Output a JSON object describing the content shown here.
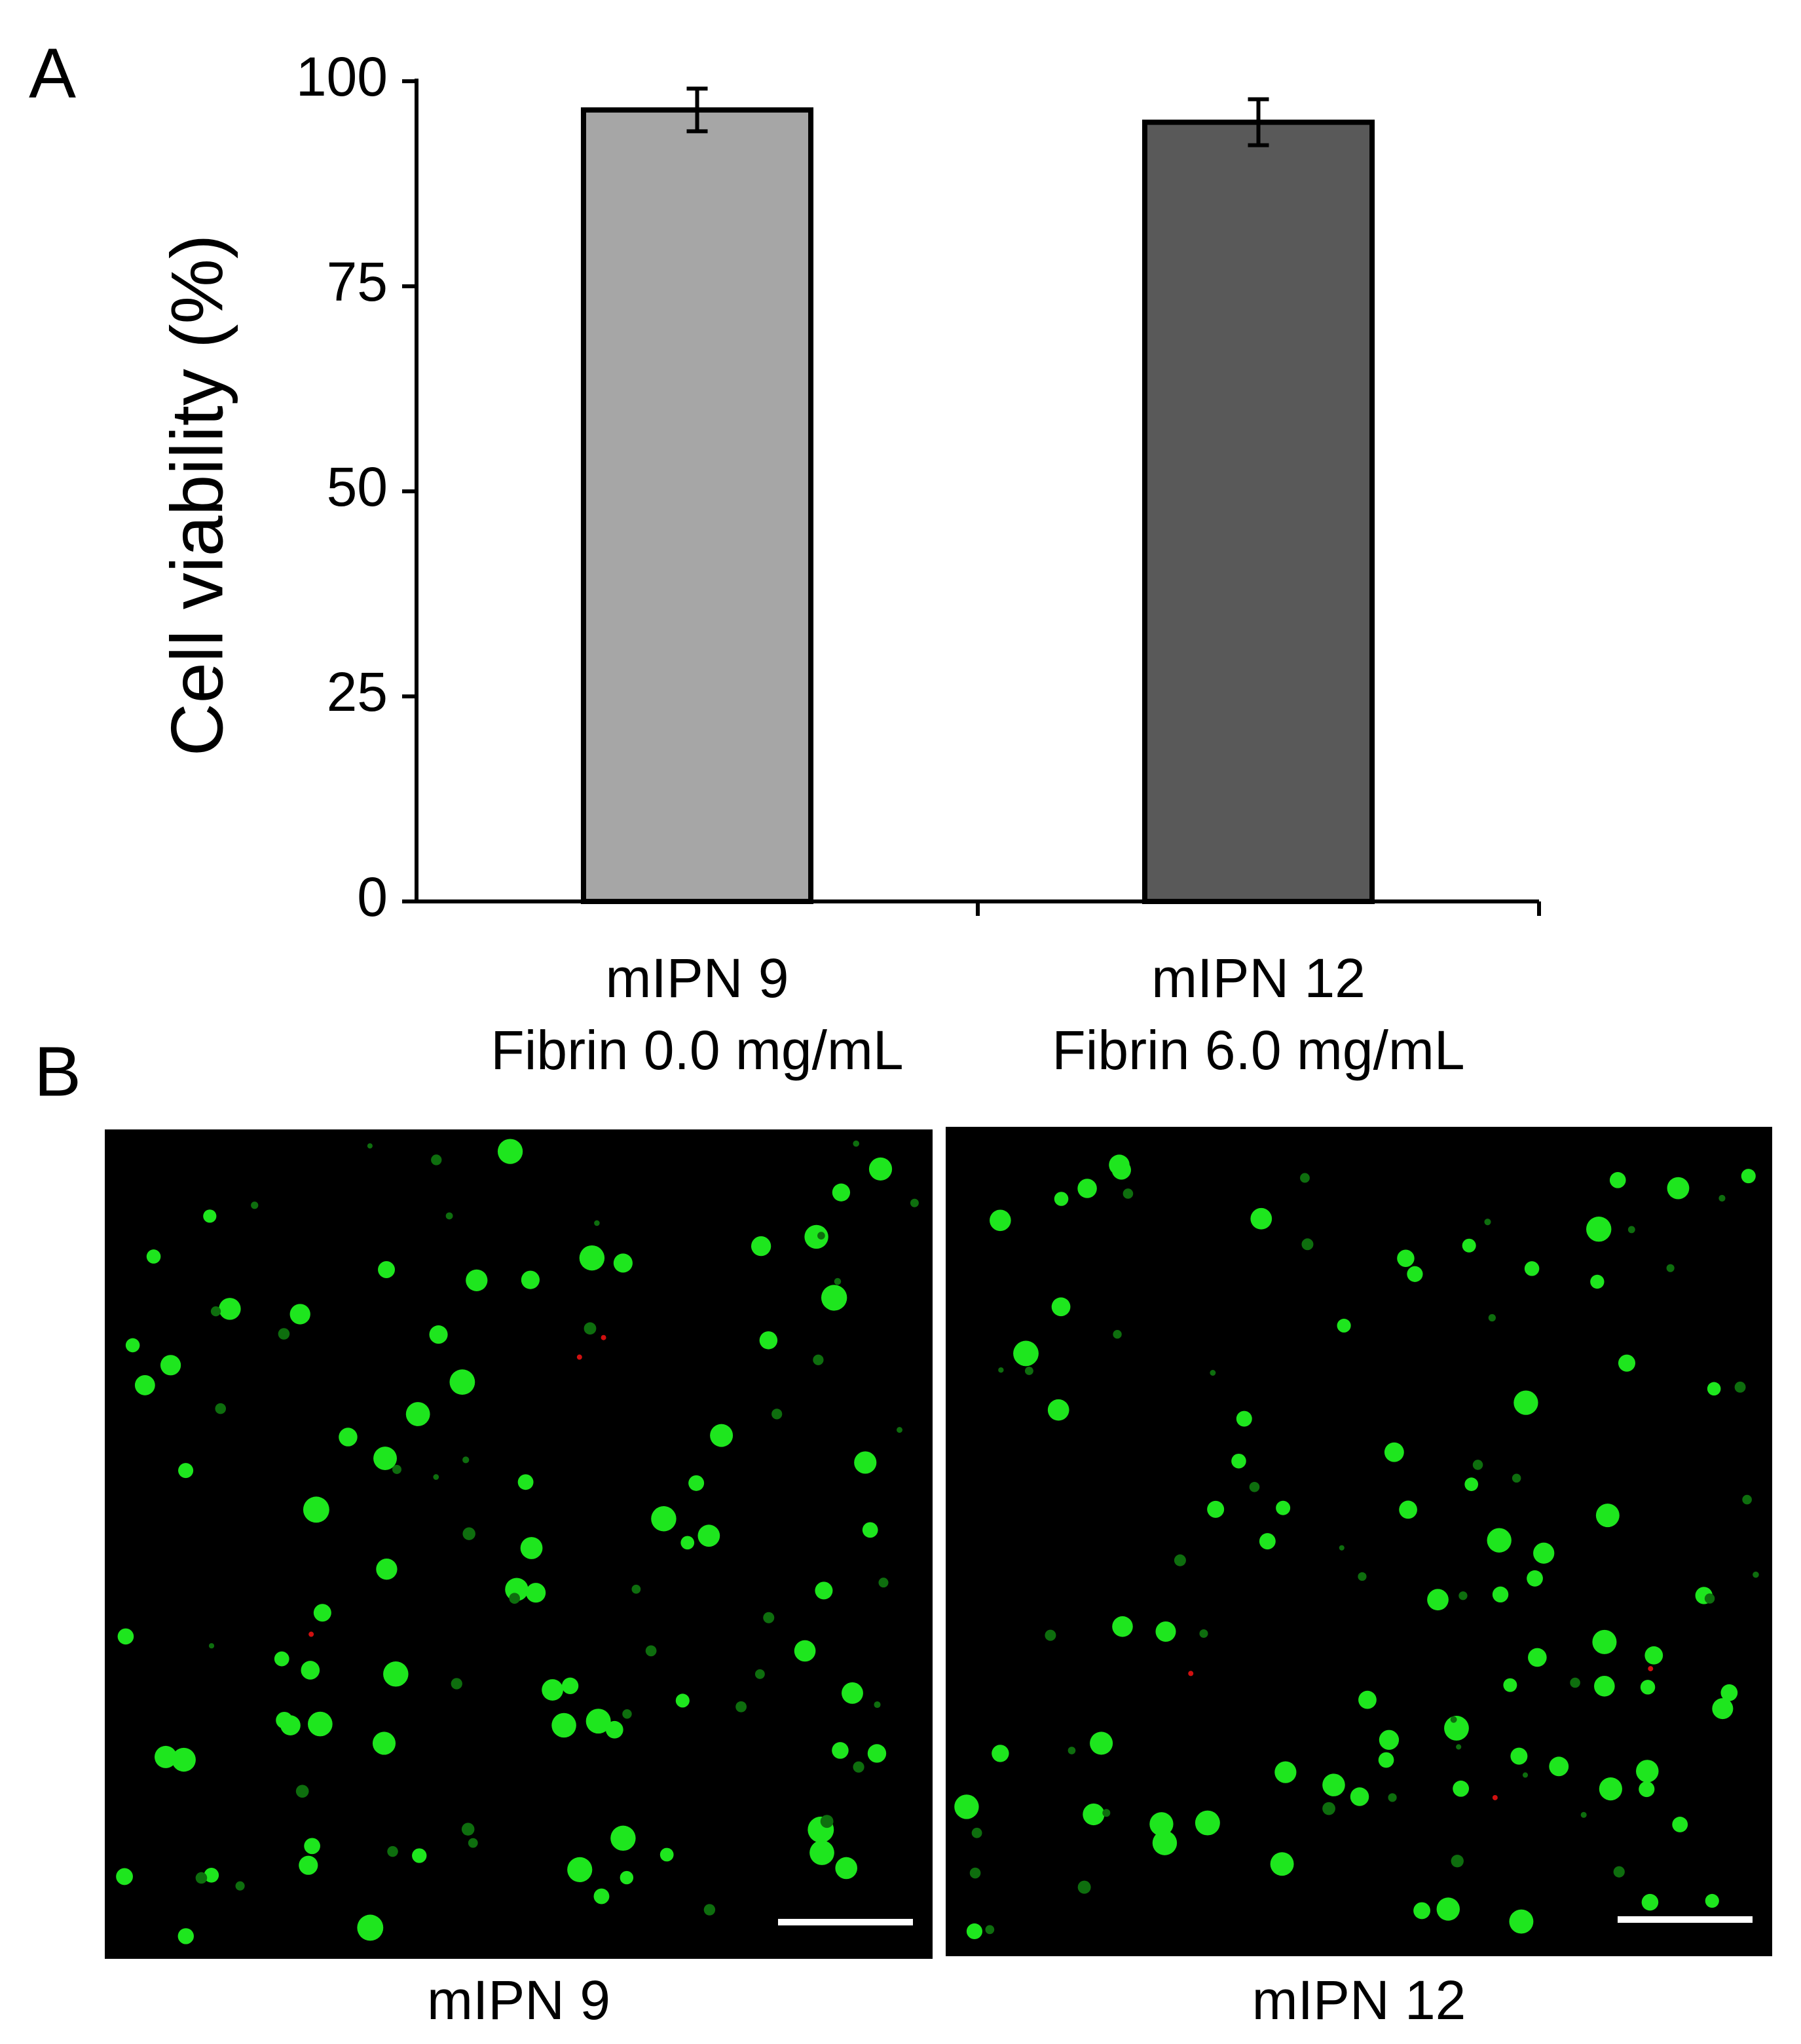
{
  "panel_labels": [
    "A",
    "B"
  ],
  "chart_data": {
    "type": "bar",
    "ylabel": "Cell viability (%)",
    "categories": [
      [
        "mIPN 9",
        "Fibrin 0.0 mg/mL"
      ],
      [
        "mIPN 12",
        "Fibrin 6.0 mg/mL"
      ]
    ],
    "values": [
      96.5,
      95
    ],
    "errors": [
      2.6,
      2.8
    ],
    "colors": [
      "#a6a6a6",
      "#595959"
    ],
    "ylim": [
      0,
      100
    ],
    "yticks": [
      0,
      25,
      50,
      75,
      100
    ]
  },
  "micrographs": [
    {
      "caption": "mIPN 9"
    },
    {
      "caption": "mIPN 12"
    }
  ]
}
